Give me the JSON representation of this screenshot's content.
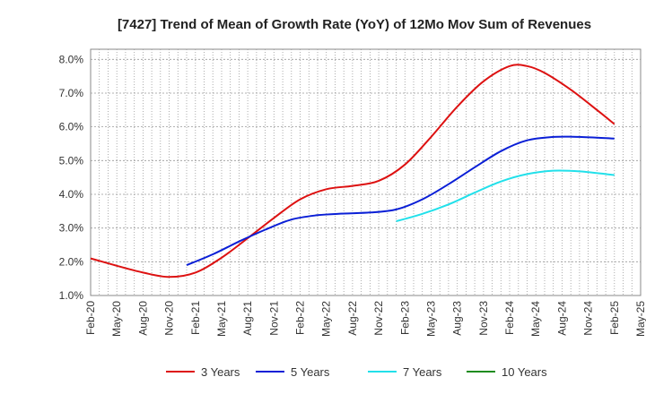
{
  "chart_data": {
    "type": "line",
    "title": "[7427]  Trend of Mean of Growth Rate (YoY) of 12Mo Mov Sum of Revenues",
    "xlabel": "",
    "ylabel": "",
    "ylim": [
      1.0,
      8.3
    ],
    "y_ticks": [
      1.0,
      2.0,
      3.0,
      4.0,
      5.0,
      6.0,
      7.0,
      8.0
    ],
    "y_tick_labels": [
      "1.0%",
      "2.0%",
      "3.0%",
      "4.0%",
      "5.0%",
      "6.0%",
      "7.0%",
      "8.0%"
    ],
    "x_tick_labels": [
      "Feb-20",
      "May-20",
      "Aug-20",
      "Nov-20",
      "Feb-21",
      "May-21",
      "Aug-21",
      "Nov-21",
      "Feb-22",
      "May-22",
      "Aug-22",
      "Nov-22",
      "Feb-23",
      "May-23",
      "Aug-23",
      "Nov-23",
      "Feb-24",
      "May-24",
      "Aug-24",
      "Nov-24",
      "Feb-25",
      "May-25"
    ],
    "x_range_months": [
      0,
      63
    ],
    "grid": true,
    "legend_position": "bottom",
    "series": [
      {
        "name": "3 Years",
        "color": "#dd1111",
        "x": [
          0,
          3,
          6,
          9,
          12,
          15,
          18,
          21,
          24,
          27,
          30,
          33,
          36,
          39,
          42,
          45,
          48,
          50,
          52,
          55,
          58,
          60
        ],
        "values": [
          2.1,
          1.88,
          1.68,
          1.55,
          1.68,
          2.12,
          2.7,
          3.3,
          3.85,
          4.15,
          4.25,
          4.4,
          4.88,
          5.7,
          6.6,
          7.35,
          7.8,
          7.8,
          7.6,
          7.1,
          6.5,
          6.08
        ]
      },
      {
        "name": "5 Years",
        "color": "#0a1fd6",
        "x": [
          11,
          14,
          17,
          20,
          23,
          26,
          29,
          32,
          35,
          38,
          41,
          44,
          47,
          50,
          53,
          56,
          60
        ],
        "values": [
          1.9,
          2.22,
          2.6,
          2.95,
          3.25,
          3.38,
          3.43,
          3.46,
          3.55,
          3.85,
          4.3,
          4.8,
          5.28,
          5.6,
          5.7,
          5.7,
          5.65
        ]
      },
      {
        "name": "7 Years",
        "color": "#22e0ea",
        "x": [
          35,
          38,
          41,
          44,
          47,
          50,
          53,
          56,
          60
        ],
        "values": [
          3.2,
          3.42,
          3.7,
          4.05,
          4.38,
          4.6,
          4.7,
          4.68,
          4.57
        ]
      },
      {
        "name": "10 Years",
        "color": "#1e8c1e",
        "x": [],
        "values": []
      }
    ]
  }
}
